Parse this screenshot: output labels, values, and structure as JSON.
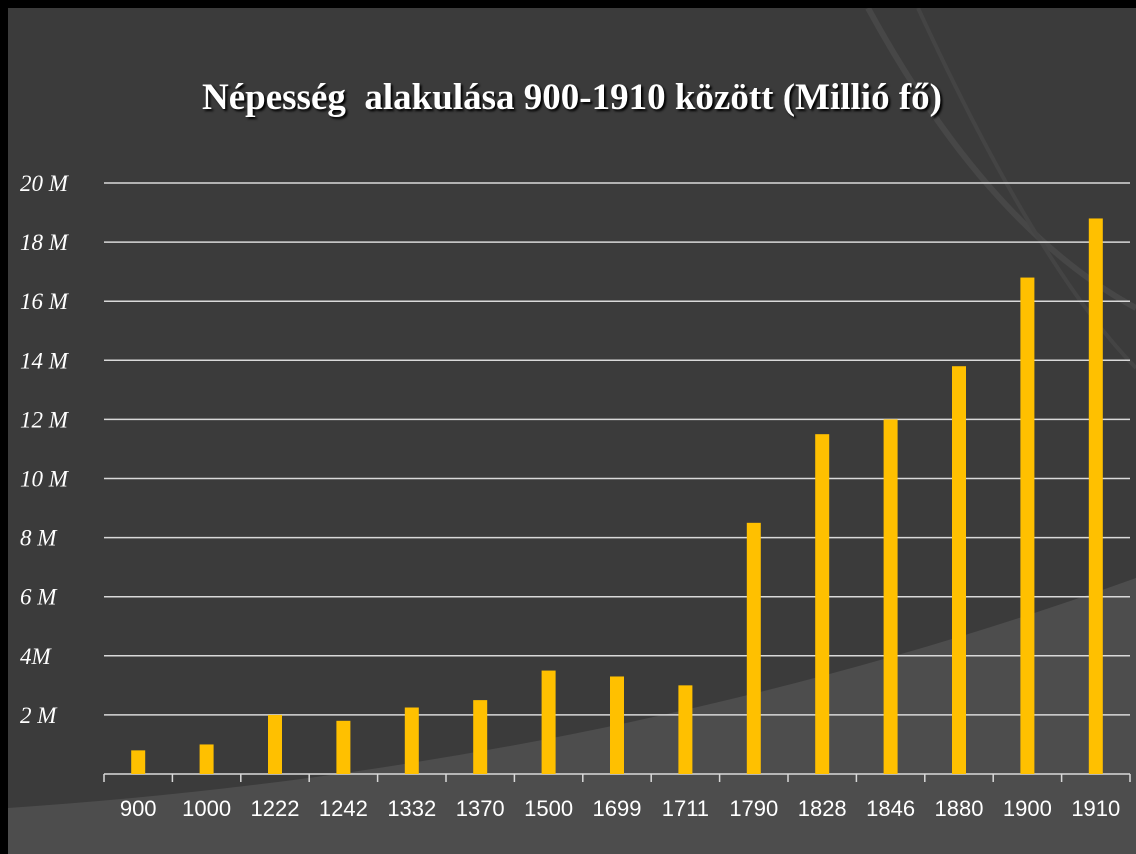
{
  "colors": {
    "background": "#3b3b3b",
    "bar": "#ffc000",
    "gridline": "#d9d9d9",
    "text": "#ffffff"
  },
  "chart_data": {
    "type": "bar",
    "title": "Népesség  alakulása 900-1910 között (Millió fő)",
    "xlabel": "",
    "ylabel": "",
    "categories": [
      "900",
      "1000",
      "1222",
      "1242",
      "1332",
      "1370",
      "1500",
      "1699",
      "1711",
      "1790",
      "1828",
      "1846",
      "1880",
      "1900",
      "1910"
    ],
    "values": [
      0.8,
      1.0,
      2.0,
      1.8,
      2.25,
      2.5,
      3.5,
      3.3,
      3.0,
      8.5,
      11.5,
      12.0,
      13.8,
      16.8,
      18.8
    ],
    "ylim": [
      0,
      20
    ],
    "y_tick_labels": [
      "2 M",
      "4M",
      "6 M",
      "8 M",
      "10 M",
      "12 M",
      "14 M",
      "16 M",
      "18 M",
      "20 M"
    ],
    "grid": true,
    "legend": "none"
  }
}
